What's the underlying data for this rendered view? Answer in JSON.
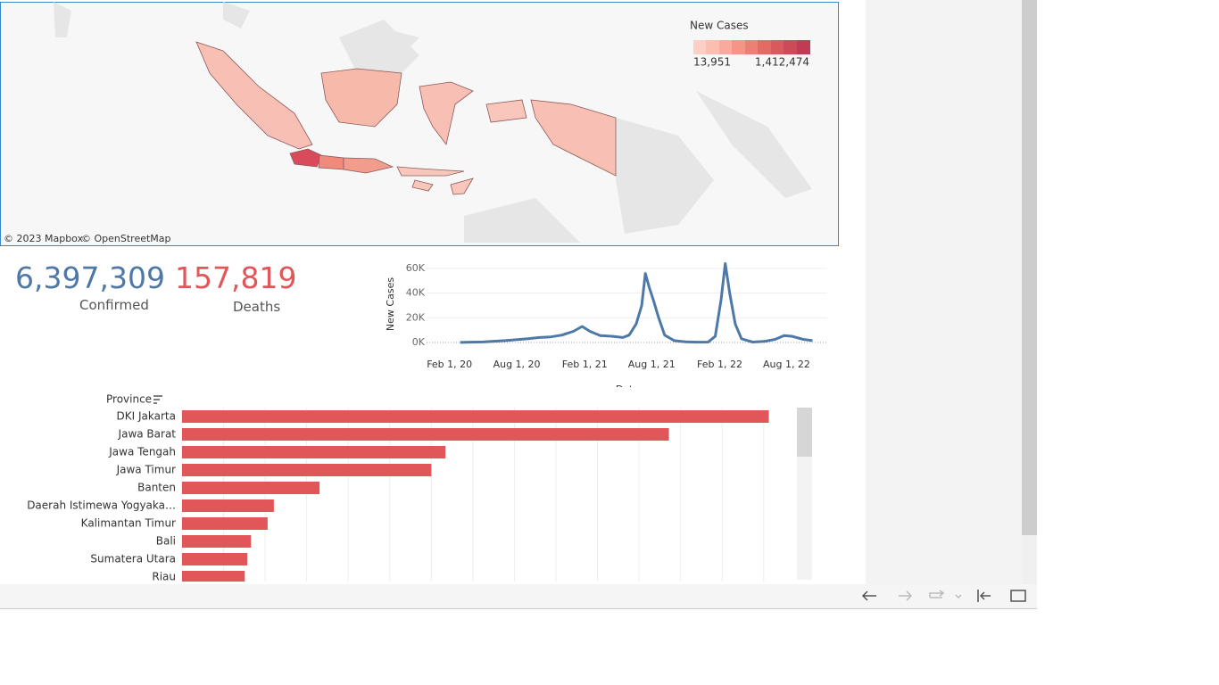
{
  "map": {
    "legend_title": "New Cases",
    "legend_min": "13,951",
    "legend_max": "1,412,474",
    "attribution_1": "© 2023 Mapbox",
    "attribution_2": "© OpenStreetMap"
  },
  "kpis": {
    "confirmed": "6,397,309",
    "confirmed_label": "Confirmed",
    "deaths": "157,819",
    "deaths_label": "Deaths"
  },
  "chart_data": [
    {
      "type": "line",
      "y_label": "New Cases",
      "x_label": "Date",
      "color": "#4e79a7",
      "x": [
        "2020-03-01",
        "2020-05-01",
        "2020-07-01",
        "2020-09-01",
        "2020-10-01",
        "2020-11-01",
        "2020-12-01",
        "2021-01-01",
        "2021-01-25",
        "2021-02-15",
        "2021-03-15",
        "2021-04-15",
        "2021-05-15",
        "2021-06-01",
        "2021-06-20",
        "2021-07-05",
        "2021-07-15",
        "2021-07-25",
        "2021-08-05",
        "2021-08-20",
        "2021-09-05",
        "2021-10-01",
        "2021-11-01",
        "2021-12-01",
        "2022-01-01",
        "2022-01-20",
        "2022-02-05",
        "2022-02-16",
        "2022-02-28",
        "2022-03-15",
        "2022-04-01",
        "2022-05-01",
        "2022-06-01",
        "2022-07-01",
        "2022-07-25",
        "2022-08-15",
        "2022-09-15",
        "2022-10-10"
      ],
      "values": [
        0,
        400,
        1500,
        3000,
        4000,
        4500,
        6000,
        9000,
        13000,
        9000,
        5500,
        5000,
        4000,
        6000,
        15000,
        30000,
        56000,
        45000,
        35000,
        20000,
        6000,
        1500,
        500,
        250,
        300,
        5000,
        35000,
        64000,
        40000,
        15000,
        3000,
        300,
        800,
        2500,
        5500,
        5000,
        2500,
        1500
      ],
      "xlim": [
        "2019-12-01",
        "2022-12-01"
      ],
      "xticks": [
        {
          "value": "2020-02-01",
          "label": "Feb 1, 20"
        },
        {
          "value": "2020-08-01",
          "label": "Aug 1, 20"
        },
        {
          "value": "2021-02-01",
          "label": "Feb 1, 21"
        },
        {
          "value": "2021-08-01",
          "label": "Aug 1, 21"
        },
        {
          "value": "2022-02-01",
          "label": "Feb 1, 22"
        },
        {
          "value": "2022-08-01",
          "label": "Aug 1, 22"
        }
      ],
      "ylim": [
        -8000,
        68000
      ],
      "yticks": [
        {
          "value": 0,
          "label": "0K"
        },
        {
          "value": 20000,
          "label": "20K"
        },
        {
          "value": 40000,
          "label": "40K"
        },
        {
          "value": 60000,
          "label": "60K"
        }
      ],
      "grid": true
    },
    {
      "type": "bar",
      "orientation": "horizontal",
      "y_label": "Province",
      "color": "#e15759",
      "categories": [
        "DKI Jakarta",
        "Jawa Barat",
        "Jawa Tengah",
        "Jawa Timur",
        "Banten",
        "Daerah Istimewa Yogyaka…",
        "Kalimantan Timur",
        "Bali",
        "Sumatera Utara",
        "Riau"
      ],
      "values": [
        1412474,
        1172000,
        634000,
        600000,
        331000,
        221000,
        206000,
        166000,
        157000,
        151000
      ],
      "xlim": [
        0,
        1480000
      ],
      "xticks": [
        0,
        100000,
        200000,
        300000,
        400000,
        500000,
        600000,
        700000,
        800000,
        900000,
        1000000,
        1100000,
        1200000,
        1300000,
        1400000
      ],
      "grid": true
    }
  ]
}
